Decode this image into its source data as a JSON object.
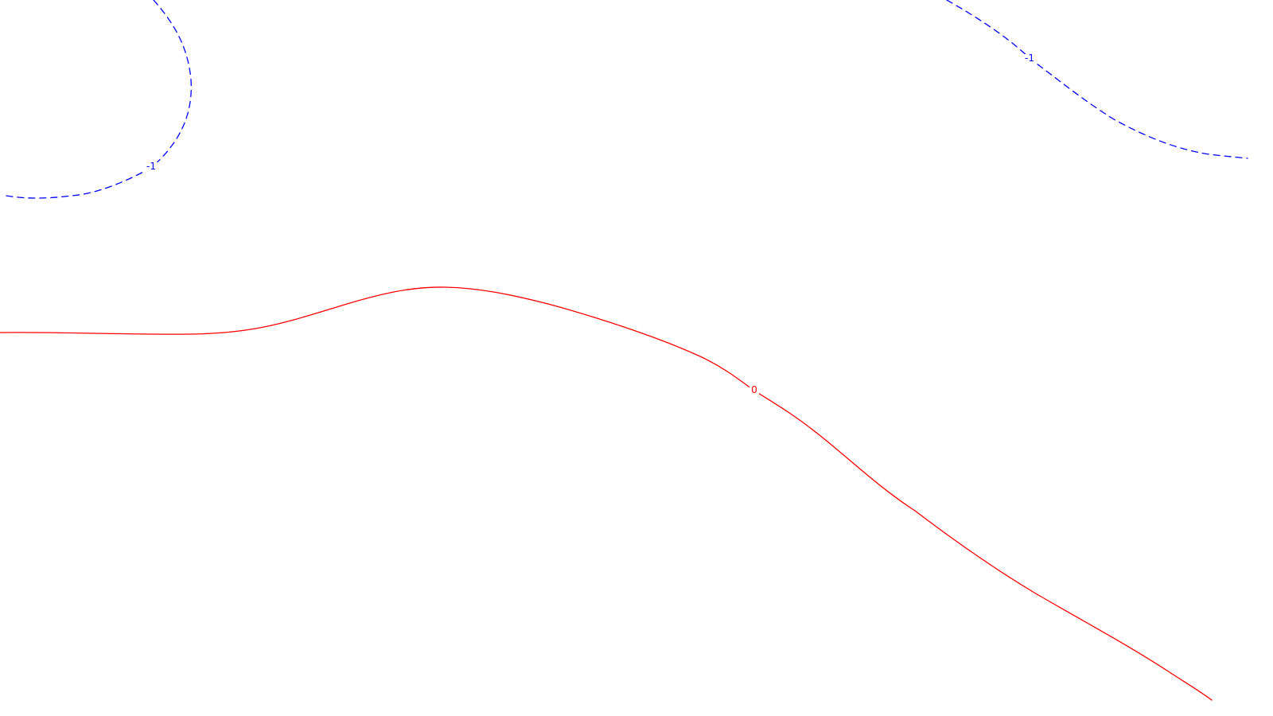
{
  "chart_data": {
    "type": "contour",
    "title": "",
    "xlabel": "",
    "ylabel": "",
    "grid": false,
    "legend": "none",
    "levels": [
      {
        "name": "-1",
        "value": -1,
        "label": "-1",
        "color": "#0000ff",
        "linestyle": "dashed"
      },
      {
        "name": "0",
        "value": 0,
        "label": "0",
        "color": "#ff0000",
        "linestyle": "solid"
      }
    ]
  }
}
